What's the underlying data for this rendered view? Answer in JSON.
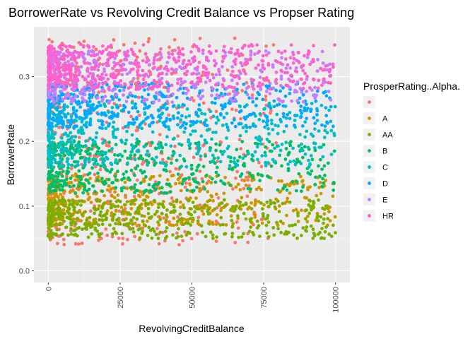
{
  "chart_data": {
    "type": "scatter",
    "title": "BorrowerRate vs Revolving Credit Balance vs Propser Rating",
    "xlabel": "RevolvingCreditBalance",
    "ylabel": "BorrowerRate",
    "xlim": [
      -5000,
      105000
    ],
    "ylim": [
      -0.018,
      0.377
    ],
    "x_ticks": [
      0,
      25000,
      50000,
      75000,
      100000
    ],
    "x_tick_labels": [
      "0",
      "25000",
      "50000",
      "75000",
      "100000"
    ],
    "y_ticks": [
      0.0,
      0.1,
      0.2,
      0.3
    ],
    "y_tick_labels": [
      "0.0",
      "0.1",
      "0.2",
      "0.3"
    ],
    "grid": true,
    "legend_position": "right",
    "legend_title": "ProsperRating..Alpha.",
    "series": [
      {
        "name": "",
        "color": "#F8766D",
        "rate_range": [
          0.04,
          0.36
        ],
        "xmax": 80000
      },
      {
        "name": "A",
        "color": "#CD9600",
        "rate_range": [
          0.07,
          0.15
        ],
        "xmax": 100000
      },
      {
        "name": "AA",
        "color": "#7CAE00",
        "rate_range": [
          0.05,
          0.11
        ],
        "xmax": 100000
      },
      {
        "name": "B",
        "color": "#00BE67",
        "rate_range": [
          0.12,
          0.2
        ],
        "xmax": 100000
      },
      {
        "name": "C",
        "color": "#00BFC4",
        "rate_range": [
          0.16,
          0.26
        ],
        "xmax": 100000
      },
      {
        "name": "D",
        "color": "#00A9FF",
        "rate_range": [
          0.22,
          0.29
        ],
        "xmax": 100000
      },
      {
        "name": "E",
        "color": "#C77CFF",
        "rate_range": [
          0.26,
          0.34
        ],
        "xmax": 100000
      },
      {
        "name": "HR",
        "color": "#FF61CC",
        "rate_range": [
          0.28,
          0.35
        ],
        "xmax": 100000
      }
    ]
  }
}
